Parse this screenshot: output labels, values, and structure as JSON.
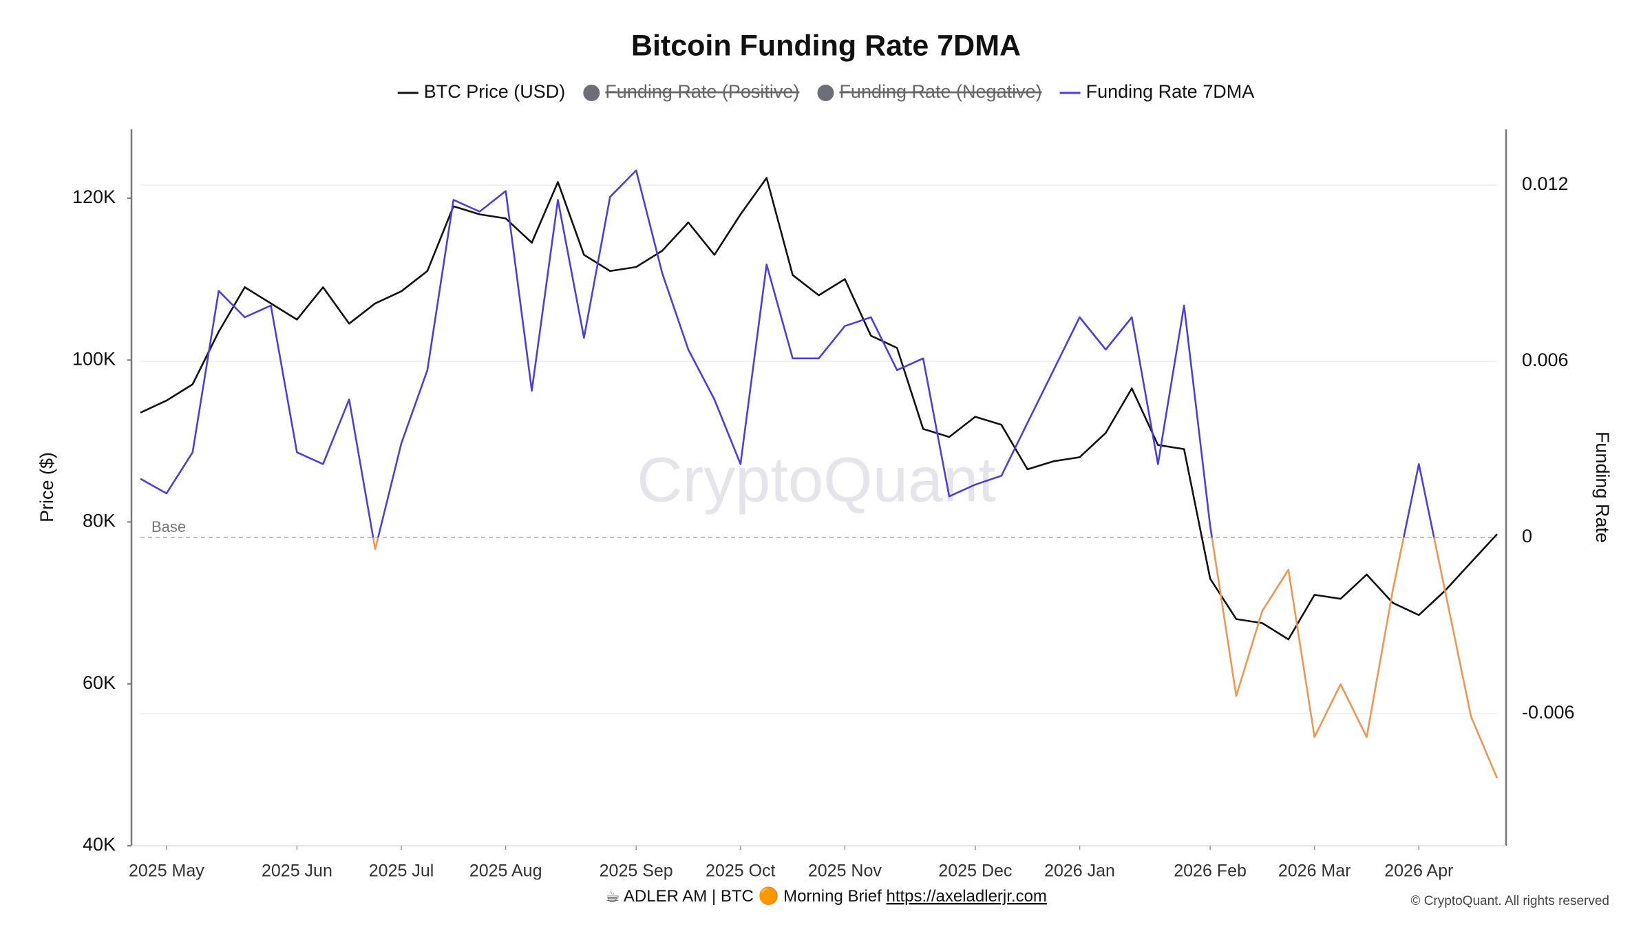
{
  "chart_data": {
    "type": "line",
    "title": "Bitcoin Funding Rate 7DMA",
    "watermark": "CryptoQuant",
    "y_label": "Price ($)",
    "y2_label": "Funding Rate",
    "base": {
      "value": 0,
      "label": "Base"
    },
    "categories": [
      null,
      "2025 May",
      null,
      null,
      null,
      null,
      "2025 Jun",
      null,
      null,
      null,
      "2025 Jul",
      null,
      null,
      null,
      "2025 Aug",
      null,
      null,
      null,
      null,
      "2025 Sep",
      null,
      null,
      null,
      "2025 Oct",
      null,
      null,
      null,
      "2025 Nov",
      null,
      null,
      null,
      null,
      "2025 Dec",
      null,
      null,
      null,
      "2026 Jan",
      null,
      null,
      null,
      null,
      "2026 Feb",
      null,
      null,
      null,
      "2026 Mar",
      null,
      null,
      null,
      "2026 Apr",
      null,
      null,
      null
    ],
    "ylim": [
      40000,
      128500
    ],
    "yticks": [
      {
        "value": 40000,
        "label": "40K"
      },
      {
        "value": 60000,
        "label": "60K"
      },
      {
        "value": 80000,
        "label": "80K"
      },
      {
        "value": 100000,
        "label": "100K"
      },
      {
        "value": 120000,
        "label": "120K"
      }
    ],
    "y2lim": [
      -0.0105,
      0.0139
    ],
    "y2ticks": [
      -0.006,
      0,
      0.006,
      0.012
    ],
    "grid": true,
    "series": [
      {
        "name": "BTC Price (USD)",
        "color": "#111111",
        "values": [
          93500,
          95000,
          97000,
          103500,
          109000,
          107000,
          105000,
          109000,
          104500,
          107000,
          108500,
          111000,
          119000,
          118000,
          117500,
          114500,
          122000,
          113000,
          111000,
          111500,
          113500,
          117000,
          113000,
          118000,
          122500,
          110500,
          108000,
          110000,
          103000,
          101500,
          91500,
          90500,
          93000,
          92000,
          86500,
          87500,
          88000,
          91000,
          96500,
          89500,
          89000,
          73000,
          68000,
          67500,
          65500,
          71000,
          70500,
          73500,
          70000,
          68500,
          71500,
          75000,
          78500
        ]
      },
      {
        "name": "Funding Rate 7DMA",
        "color": "#4b3ee0",
        "negative_color": "#f29550",
        "axis": "y2",
        "values": [
          0.002,
          0.0015,
          0.0029,
          0.0084,
          0.0075,
          0.0079,
          0.0029,
          0.0025,
          0.0047,
          -0.0004,
          0.0032,
          0.0057,
          0.0115,
          0.0111,
          0.0118,
          0.005,
          0.0115,
          0.0068,
          0.0116,
          0.0125,
          0.009,
          0.0064,
          0.0047,
          0.0025,
          0.0093,
          0.0061,
          0.0061,
          0.0072,
          0.0075,
          0.0057,
          0.0061,
          0.0014,
          0.0018,
          0.0021,
          0.0039,
          0.0057,
          0.0075,
          0.0064,
          0.0075,
          0.0025,
          0.0079,
          0.0004,
          -0.0054,
          -0.0025,
          -0.0011,
          -0.0068,
          -0.005,
          -0.0068,
          -0.0018,
          0.0025,
          -0.0018,
          -0.0061,
          -0.0082
        ]
      }
    ],
    "hidden_series": [
      {
        "name": "Funding Rate (Positive)",
        "color": "#6e6e78"
      },
      {
        "name": "Funding Rate (Negative)",
        "color": "#6e6e78"
      }
    ],
    "footer": {
      "text": "☕ ADLER AM | BTC 🟠 Morning Brief",
      "link": "https://axeladlerjr.com"
    },
    "copyright": "© CryptoQuant. All rights reserved"
  }
}
